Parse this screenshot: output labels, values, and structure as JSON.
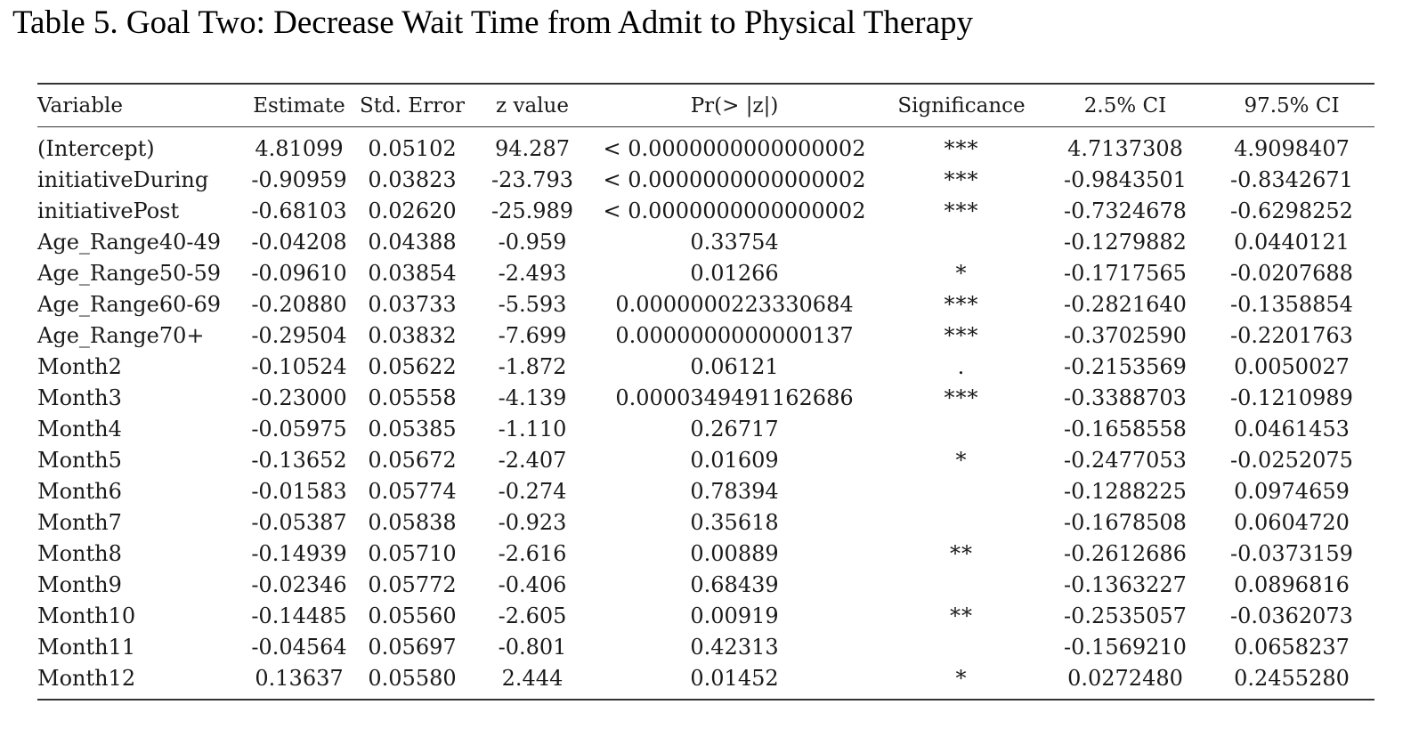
{
  "title": "Table 5. Goal Two: Decrease Wait Time from Admit to Physical Therapy",
  "table": {
    "columns": [
      "Variable",
      "Estimate",
      "Std. Error",
      "z value",
      "Pr(> |z|)",
      "Significance",
      "2.5% CI",
      "97.5% CI"
    ],
    "rows": [
      [
        "(Intercept)",
        "4.81099",
        "0.05102",
        "94.287",
        "< 0.0000000000000002",
        "***",
        "4.7137308",
        "4.9098407"
      ],
      [
        "initiativeDuring",
        "-0.90959",
        "0.03823",
        "-23.793",
        "< 0.0000000000000002",
        "***",
        "-0.9843501",
        "-0.8342671"
      ],
      [
        "initiativePost",
        "-0.68103",
        "0.02620",
        "-25.989",
        "< 0.0000000000000002",
        "***",
        "-0.7324678",
        "-0.6298252"
      ],
      [
        "Age_Range40-49",
        "-0.04208",
        "0.04388",
        "-0.959",
        "0.33754",
        "",
        "-0.1279882",
        "0.0440121"
      ],
      [
        "Age_Range50-59",
        "-0.09610",
        "0.03854",
        "-2.493",
        "0.01266",
        "*",
        "-0.1717565",
        "-0.0207688"
      ],
      [
        "Age_Range60-69",
        "-0.20880",
        "0.03733",
        "-5.593",
        "0.0000000223330684",
        "***",
        "-0.2821640",
        "-0.1358854"
      ],
      [
        "Age_Range70+",
        "-0.29504",
        "0.03832",
        "-7.699",
        "0.0000000000000137",
        "***",
        "-0.3702590",
        "-0.2201763"
      ],
      [
        "Month2",
        "-0.10524",
        "0.05622",
        "-1.872",
        "0.06121",
        ".",
        "-0.2153569",
        "0.0050027"
      ],
      [
        "Month3",
        "-0.23000",
        "0.05558",
        "-4.139",
        "0.0000349491162686",
        "***",
        "-0.3388703",
        "-0.1210989"
      ],
      [
        "Month4",
        "-0.05975",
        "0.05385",
        "-1.110",
        "0.26717",
        "",
        "-0.1658558",
        "0.0461453"
      ],
      [
        "Month5",
        "-0.13652",
        "0.05672",
        "-2.407",
        "0.01609",
        "*",
        "-0.2477053",
        "-0.0252075"
      ],
      [
        "Month6",
        "-0.01583",
        "0.05774",
        "-0.274",
        "0.78394",
        "",
        "-0.1288225",
        "0.0974659"
      ],
      [
        "Month7",
        "-0.05387",
        "0.05838",
        "-0.923",
        "0.35618",
        "",
        "-0.1678508",
        "0.0604720"
      ],
      [
        "Month8",
        "-0.14939",
        "0.05710",
        "-2.616",
        "0.00889",
        "**",
        "-0.2612686",
        "-0.0373159"
      ],
      [
        "Month9",
        "-0.02346",
        "0.05772",
        "-0.406",
        "0.68439",
        "",
        "-0.1363227",
        "0.0896816"
      ],
      [
        "Month10",
        "-0.14485",
        "0.05560",
        "-2.605",
        "0.00919",
        "**",
        "-0.2535057",
        "-0.0362073"
      ],
      [
        "Month11",
        "-0.04564",
        "0.05697",
        "-0.801",
        "0.42313",
        "",
        "-0.1569210",
        "0.0658237"
      ],
      [
        "Month12",
        "0.13637",
        "0.05580",
        "2.444",
        "0.01452",
        "*",
        "0.0272480",
        "0.2455280"
      ]
    ]
  }
}
